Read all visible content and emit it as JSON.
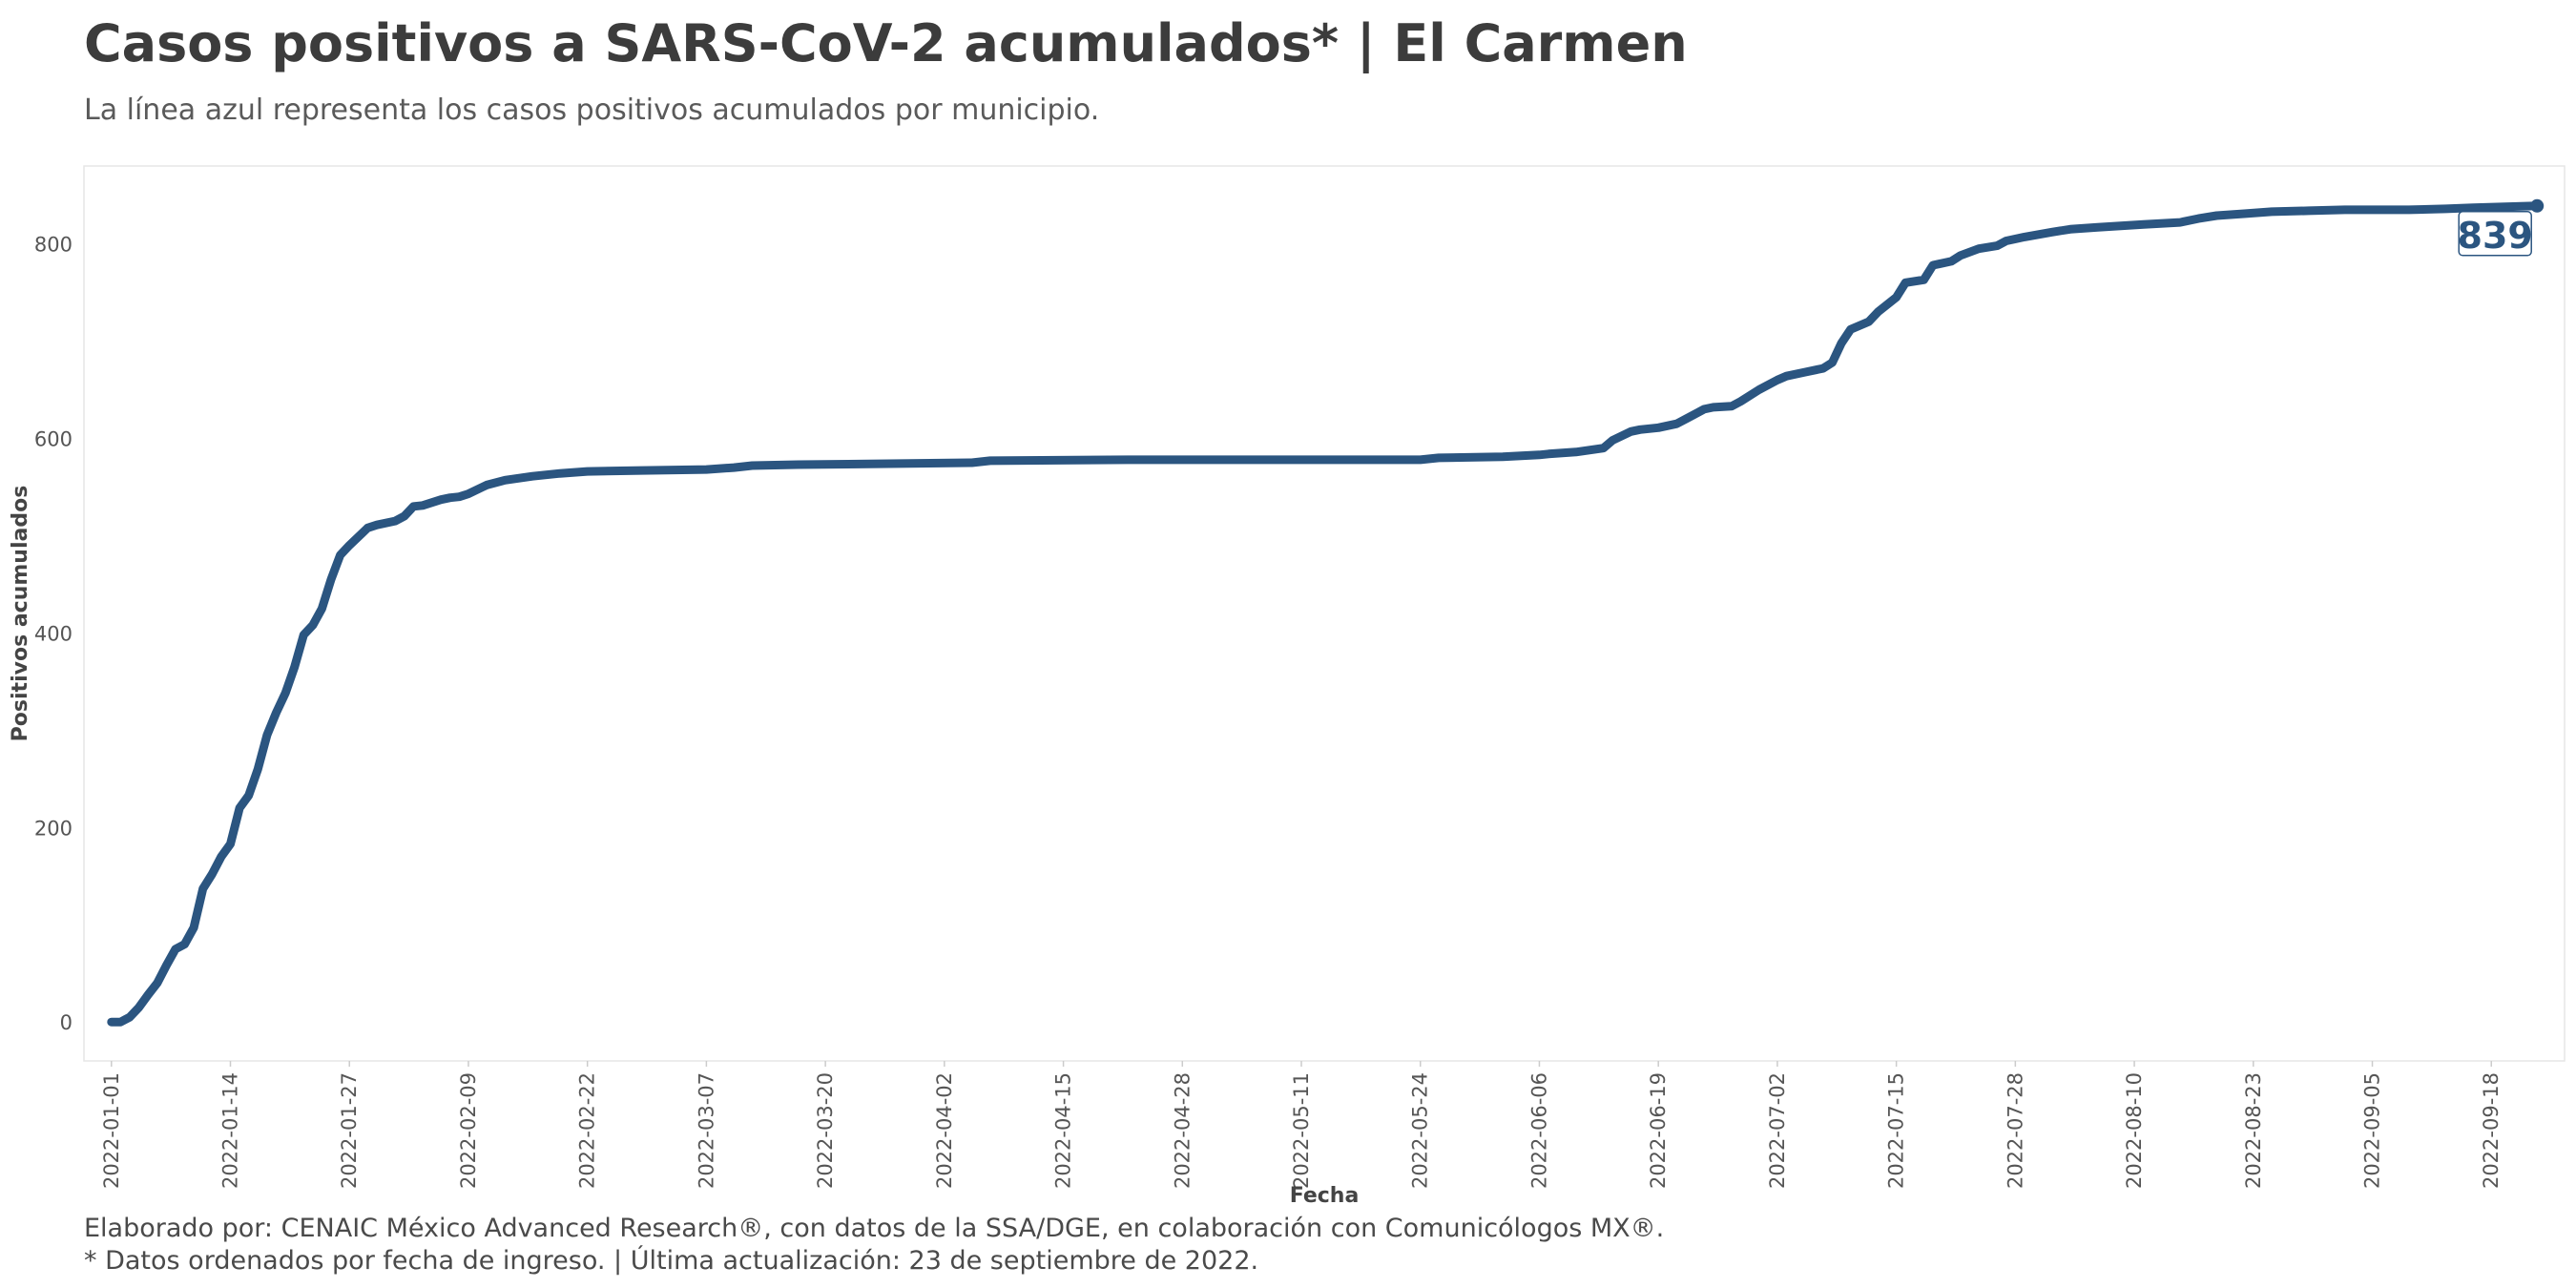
{
  "title": "Casos positivos a SARS-CoV-2 acumulados* | El Carmen",
  "subtitle": "La línea azul representa los casos positivos acumulados por municipio.",
  "caption_line1": "Elaborado por: CENAIC México Advanced Research®, con datos de la SSA/DGE, en colaboración con Comunicólogos MX®.",
  "caption_line2": "* Datos ordenados por fecha de ingreso. | Última actualización: 23 de septiembre de 2022.",
  "chart_data": {
    "type": "line",
    "title": "Casos positivos a SARS-CoV-2 acumulados* | El Carmen",
    "subtitle": "La línea azul representa los casos positivos acumulados por municipio.",
    "xlabel": "Fecha",
    "ylabel": "Positivos acumulados",
    "xlim": [
      "2021-12-29",
      "2022-09-26"
    ],
    "ylim": [
      -40,
      880
    ],
    "x_ticks": [
      "2022-01-01",
      "2022-01-14",
      "2022-01-27",
      "2022-02-09",
      "2022-02-22",
      "2022-03-07",
      "2022-03-20",
      "2022-04-02",
      "2022-04-15",
      "2022-04-28",
      "2022-05-11",
      "2022-05-24",
      "2022-06-06",
      "2022-06-19",
      "2022-07-02",
      "2022-07-15",
      "2022-07-28",
      "2022-08-10",
      "2022-08-23",
      "2022-09-05",
      "2022-09-18"
    ],
    "y_ticks": [
      0,
      200,
      400,
      600,
      800
    ],
    "grid": false,
    "line_color": "#2b5580",
    "end_label": "839",
    "series": [
      {
        "x": [
          "2022-01-01",
          "2022-01-02",
          "2022-01-03",
          "2022-01-04",
          "2022-01-05",
          "2022-01-06",
          "2022-01-07",
          "2022-01-08",
          "2022-01-09",
          "2022-01-10",
          "2022-01-11",
          "2022-01-12",
          "2022-01-13",
          "2022-01-14",
          "2022-01-15",
          "2022-01-16",
          "2022-01-17",
          "2022-01-18",
          "2022-01-19",
          "2022-01-20",
          "2022-01-21",
          "2022-01-22",
          "2022-01-23",
          "2022-01-24",
          "2022-01-25",
          "2022-01-26",
          "2022-01-27",
          "2022-01-29",
          "2022-01-30",
          "2022-02-01",
          "2022-02-02",
          "2022-02-03",
          "2022-02-04",
          "2022-02-06",
          "2022-02-07",
          "2022-02-08",
          "2022-02-09",
          "2022-02-11",
          "2022-02-13",
          "2022-02-16",
          "2022-02-19",
          "2022-02-22",
          "2022-02-28",
          "2022-03-07",
          "2022-03-10",
          "2022-03-12",
          "2022-03-17",
          "2022-03-27",
          "2022-04-05",
          "2022-04-07",
          "2022-04-22",
          "2022-05-24",
          "2022-05-26",
          "2022-06-02",
          "2022-06-06",
          "2022-06-07",
          "2022-06-10",
          "2022-06-13",
          "2022-06-14",
          "2022-06-16",
          "2022-06-17",
          "2022-06-19",
          "2022-06-21",
          "2022-06-22",
          "2022-06-24",
          "2022-06-25",
          "2022-06-27",
          "2022-06-28",
          "2022-06-30",
          "2022-07-02",
          "2022-07-03",
          "2022-07-05",
          "2022-07-07",
          "2022-07-08",
          "2022-07-09",
          "2022-07-10",
          "2022-07-12",
          "2022-07-13",
          "2022-07-15",
          "2022-07-16",
          "2022-07-18",
          "2022-07-19",
          "2022-07-21",
          "2022-07-22",
          "2022-07-24",
          "2022-07-26",
          "2022-07-27",
          "2022-07-29",
          "2022-08-01",
          "2022-08-03",
          "2022-08-06",
          "2022-08-11",
          "2022-08-15",
          "2022-08-17",
          "2022-08-19",
          "2022-08-22",
          "2022-08-25",
          "2022-08-29",
          "2022-09-02",
          "2022-09-09",
          "2022-09-13",
          "2022-09-16",
          "2022-09-23"
        ],
        "y": [
          0,
          0,
          5,
          15,
          28,
          40,
          58,
          75,
          80,
          97,
          137,
          152,
          170,
          183,
          220,
          233,
          260,
          295,
          318,
          338,
          365,
          398,
          408,
          425,
          455,
          480,
          490,
          508,
          511,
          515,
          520,
          530,
          531,
          537,
          539,
          540,
          543,
          552,
          557,
          561,
          564,
          566,
          567,
          568,
          570,
          572,
          573,
          574,
          575,
          577,
          578,
          578,
          580,
          581,
          583,
          584,
          586,
          590,
          598,
          607,
          609,
          611,
          615,
          620,
          630,
          632,
          633,
          638,
          650,
          660,
          664,
          668,
          672,
          678,
          698,
          712,
          720,
          730,
          745,
          760,
          763,
          778,
          782,
          788,
          795,
          798,
          803,
          807,
          812,
          815,
          817,
          820,
          822,
          826,
          829,
          831,
          833,
          834,
          835,
          835,
          836,
          837,
          839
        ]
      }
    ]
  }
}
